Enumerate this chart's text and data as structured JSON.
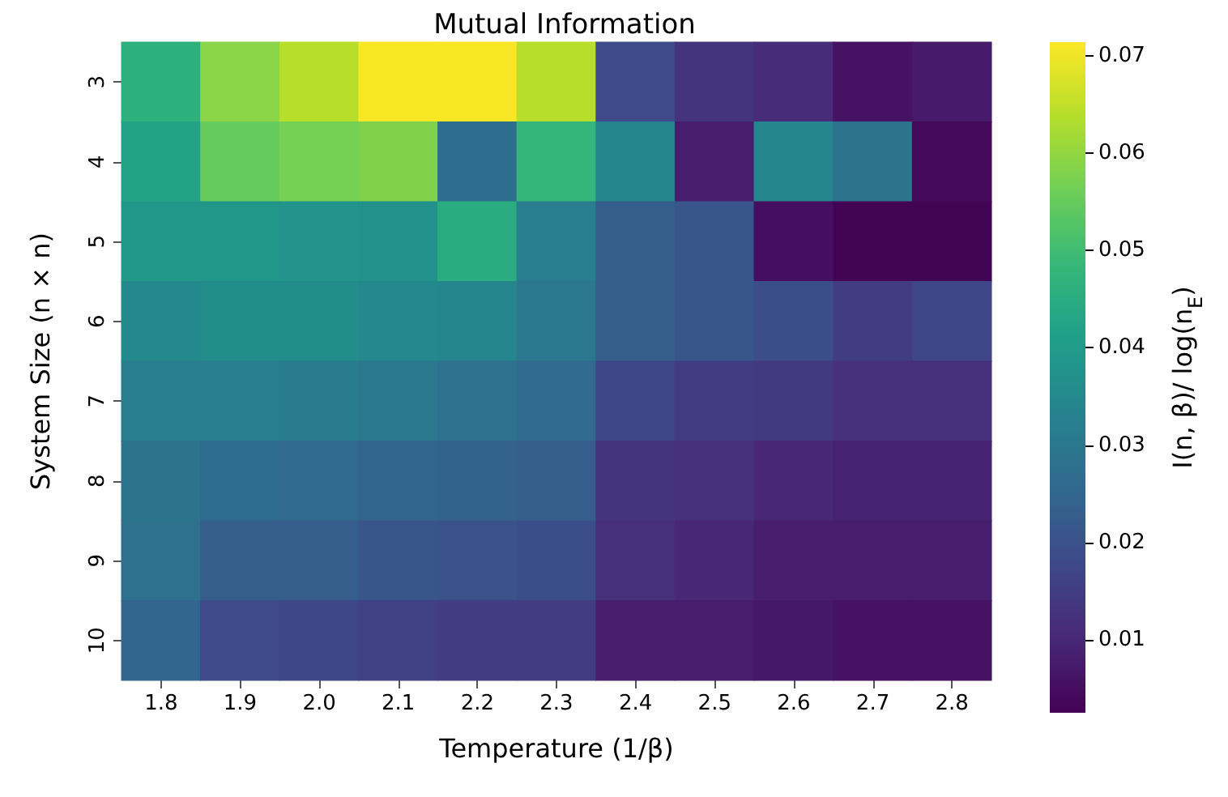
{
  "chart_data": {
    "type": "heatmap",
    "title": "Mutual Information",
    "xlabel": "Temperature (1/β)",
    "ylabel": "System Size (n × n)",
    "clabel": "I(n, β)/ log(n$_{E}$)",
    "categories": [
      "1.8",
      "1.9",
      "2.0",
      "2.1",
      "2.2",
      "2.3",
      "2.4",
      "2.5",
      "2.6",
      "2.7",
      "2.8"
    ],
    "y_categories": [
      "3",
      "4",
      "5",
      "6",
      "7",
      "8",
      "9",
      "10"
    ],
    "cells": [
      [
        0.046,
        0.059,
        0.064,
        0.071,
        0.071,
        0.064,
        0.018,
        0.013,
        0.011,
        0.006,
        0.0075
      ],
      [
        0.042,
        0.055,
        0.057,
        0.058,
        0.027,
        0.048,
        0.034,
        0.008,
        0.034,
        0.029,
        0.004
      ],
      [
        0.039,
        0.039,
        0.038,
        0.037,
        0.045,
        0.032,
        0.023,
        0.021,
        0.005,
        0.003,
        0.003
      ],
      [
        0.035,
        0.036,
        0.036,
        0.035,
        0.034,
        0.03,
        0.023,
        0.021,
        0.019,
        0.015,
        0.017
      ],
      [
        0.032,
        0.032,
        0.031,
        0.03,
        0.028,
        0.026,
        0.017,
        0.015,
        0.014,
        0.012,
        0.012
      ],
      [
        0.029,
        0.027,
        0.026,
        0.025,
        0.024,
        0.023,
        0.013,
        0.012,
        0.01,
        0.009,
        0.009
      ],
      [
        0.028,
        0.023,
        0.023,
        0.021,
        0.02,
        0.019,
        0.012,
        0.01,
        0.008,
        0.008,
        0.008
      ],
      [
        0.025,
        0.018,
        0.017,
        0.016,
        0.015,
        0.015,
        0.008,
        0.008,
        0.007,
        0.006,
        0.006
      ]
    ],
    "clim": [
      0.0025,
      0.0714
    ],
    "cticks": [
      0.01,
      0.02,
      0.03,
      0.04,
      0.05,
      0.06,
      0.07
    ]
  }
}
